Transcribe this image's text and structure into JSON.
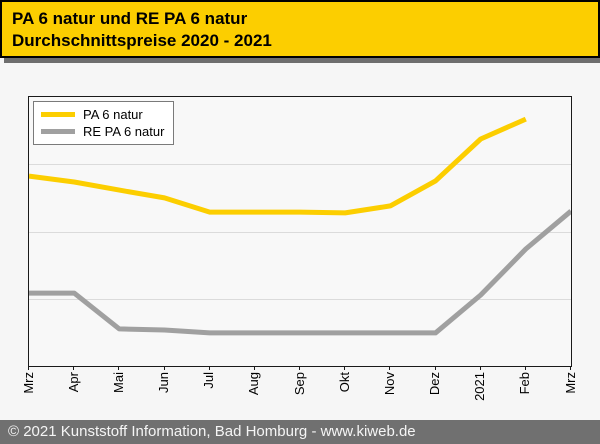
{
  "header": {
    "title_line1": "PA 6 natur und RE PA 6 natur",
    "title_line2": "Durchschnittspreise 2020 - 2021"
  },
  "footer": {
    "text": "© 2021 Kunststoff Information, Bad Homburg - www.kiweb.de"
  },
  "colors": {
    "header_bg": "#FCCE00",
    "series_pa6": "#FCCE00",
    "series_re_pa6": "#A0A0A0",
    "footer_bg": "#707070",
    "page_bg": "#F6F6F6",
    "gridline": "#DBDBDB",
    "plot_border": "#1A1A1A"
  },
  "chart_data": {
    "type": "line",
    "title": "PA 6 natur und RE PA 6 natur — Durchschnittspreise 2020 - 2021",
    "categories": [
      "Mrz",
      "Apr",
      "Mai",
      "Jun",
      "Jul",
      "Aug",
      "Sep",
      "Okt",
      "Nov",
      "Dez",
      "2021",
      "Feb",
      "Mrz"
    ],
    "series": [
      {
        "name": "PA 6 natur",
        "color": "#FCCE00",
        "values": [
          70.6,
          68.4,
          65.4,
          62.5,
          57.2,
          57.2,
          57.2,
          56.9,
          59.5,
          68.8,
          84.4,
          91.8,
          null
        ]
      },
      {
        "name": "RE PA 6 natur",
        "color": "#A0A0A0",
        "values": [
          27.1,
          27.1,
          13.8,
          13.4,
          12.3,
          12.3,
          12.3,
          12.3,
          12.3,
          12.3,
          26.4,
          43.5,
          57.6
        ]
      }
    ],
    "xlabel": "",
    "ylabel": "",
    "ylim": [
      0,
      100
    ],
    "y_axis_tick_labels_visible": false,
    "value_unit": "percent of plot height (y-axis is unlabeled in source image)",
    "grid": "3 inner horizontal gridlines",
    "x_tick_label_rotation": -90,
    "legend_position": "top-left inside plot"
  }
}
